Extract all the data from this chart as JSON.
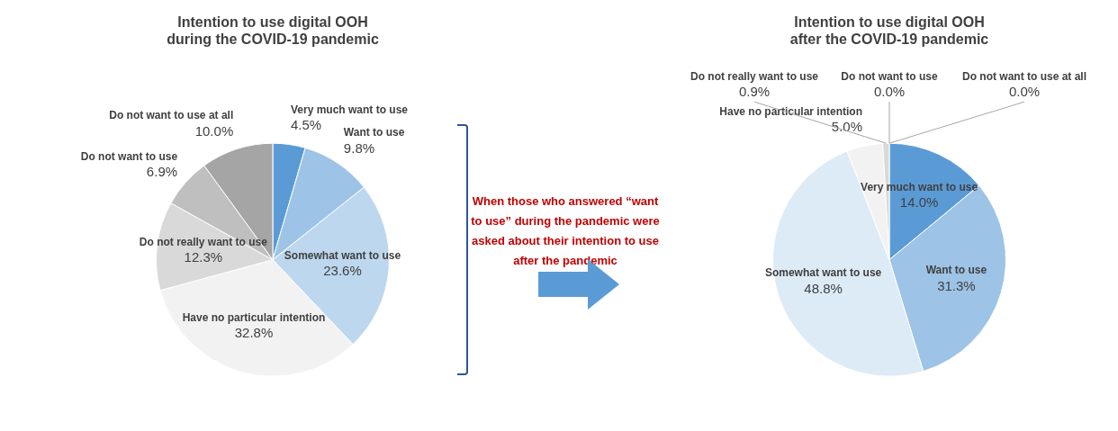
{
  "chart_data": [
    {
      "type": "pie",
      "title": "Intention to use digital OOH\nduring the COVID-19 pandemic",
      "categories": [
        "Very much want to use",
        "Want to use",
        "Somewhat want to use",
        "Have no particular intention",
        "Do not really want to use",
        "Do not want to use",
        "Do not want to use at all"
      ],
      "values": [
        4.5,
        9.8,
        23.6,
        32.8,
        12.3,
        6.9,
        10.0
      ],
      "value_labels": [
        "4.5%",
        "9.8%",
        "23.6%",
        "32.8%",
        "12.3%",
        "6.9%",
        "10.0%"
      ],
      "colors": [
        "#5b9bd5",
        "#9dc3e6",
        "#bdd7ee",
        "#f2f2f2",
        "#d9d9d9",
        "#bfbfbf",
        "#a5a5a5"
      ]
    },
    {
      "type": "pie",
      "title": "Intention to use digital OOH\nafter the COVID-19 pandemic",
      "categories": [
        "Very much want to use",
        "Want to use",
        "Somewhat want to use",
        "Have no particular intention",
        "Do not really want to use",
        "Do not want to use",
        "Do not want to use at all"
      ],
      "values": [
        14.0,
        31.3,
        48.8,
        5.0,
        0.9,
        0.0,
        0.0
      ],
      "value_labels": [
        "14.0%",
        "31.3%",
        "48.8%",
        "5.0%",
        "0.9%",
        "0.0%",
        "0.0%"
      ],
      "colors": [
        "#5b9bd5",
        "#9dc3e6",
        "#ddebf7",
        "#f2f2f2",
        "#d9d9d9",
        "#bfbfbf",
        "#a5a5a5"
      ],
      "annotations": [
        "When those who answered “want to use” during the pandemic were asked about their intention to use after the pandemic"
      ]
    }
  ]
}
